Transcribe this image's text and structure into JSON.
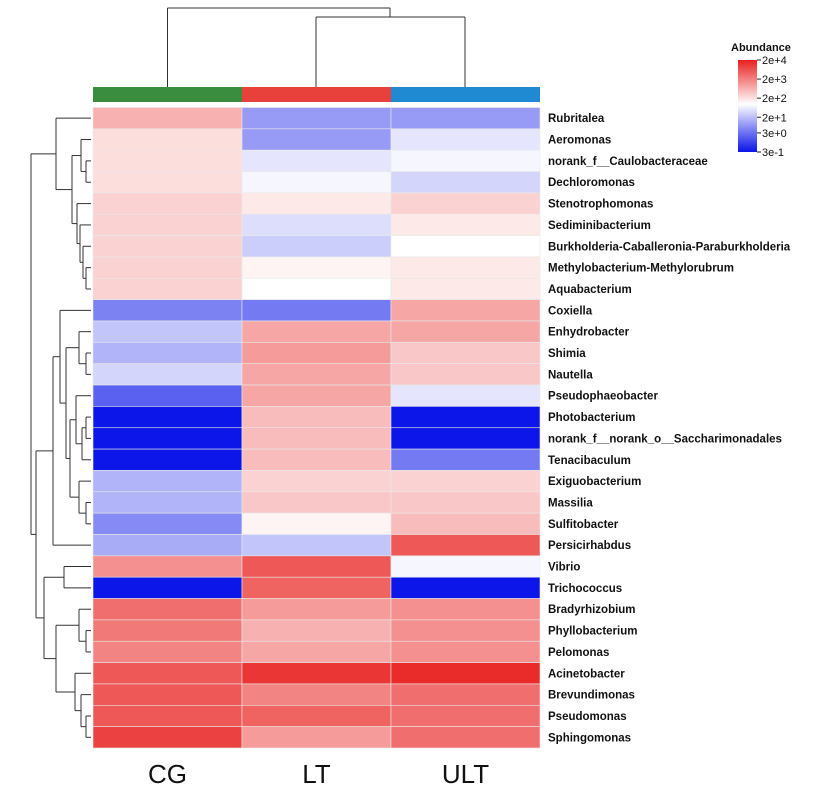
{
  "chart_data": {
    "type": "heatmap",
    "columns": [
      "CG",
      "LT",
      "ULT"
    ],
    "rows": [
      "Rubritalea",
      "Aeromonas",
      "norank_f__Caulobacteraceae",
      "Dechloromonas",
      "Stenotrophomonas",
      "Sediminibacterium",
      "Burkholderia-Caballeronia-Paraburkholderia",
      "Methylobacterium-Methylorubrum",
      "Aquabacterium",
      "Coxiella",
      "Enhydrobacter",
      "Shimia",
      "Nautella",
      "Pseudophaeobacter",
      "Photobacterium",
      "norank_f__norank_o__Saccharimonadales",
      "Tenacibaculum",
      "Exiguobacterium",
      "Massilia",
      "Sulfitobacter",
      "Persicirhabdus",
      "Vibrio",
      "Trichococcus",
      "Bradyrhizobium",
      "Phyllobacterium",
      "Pelomonas",
      "Acinetobacter",
      "Brevundimonas",
      "Pseudomonas",
      "Sphingomonas"
    ],
    "log10_values": [
      [
        3.0,
        1.1,
        1.1
      ],
      [
        2.6,
        1.1,
        2.0
      ],
      [
        2.6,
        2.0,
        2.2
      ],
      [
        2.6,
        2.2,
        1.8
      ],
      [
        2.7,
        2.5,
        2.7
      ],
      [
        2.7,
        1.9,
        2.5
      ],
      [
        2.7,
        1.7,
        2.3
      ],
      [
        2.7,
        2.4,
        2.5
      ],
      [
        2.7,
        2.3,
        2.5
      ],
      [
        0.8,
        0.7,
        3.1
      ],
      [
        1.6,
        3.1,
        3.1
      ],
      [
        1.4,
        3.2,
        2.8
      ],
      [
        1.8,
        3.1,
        2.8
      ],
      [
        0.4,
        3.1,
        2.0
      ],
      [
        -0.5,
        2.9,
        -0.5
      ],
      [
        -0.5,
        2.9,
        -0.5
      ],
      [
        -0.5,
        2.9,
        0.7
      ],
      [
        1.4,
        2.7,
        2.7
      ],
      [
        1.4,
        2.8,
        2.8
      ],
      [
        0.9,
        2.4,
        2.9
      ],
      [
        1.3,
        1.6,
        3.8
      ],
      [
        3.3,
        3.8,
        2.2
      ],
      [
        -0.5,
        3.7,
        -0.5
      ],
      [
        3.6,
        3.2,
        3.3
      ],
      [
        3.5,
        3.0,
        3.3
      ],
      [
        3.4,
        3.1,
        3.3
      ],
      [
        3.8,
        4.1,
        4.2
      ],
      [
        3.8,
        3.4,
        3.6
      ],
      [
        3.8,
        3.7,
        3.6
      ],
      [
        4.0,
        3.2,
        3.6
      ]
    ],
    "column_group_colors": [
      "#3a8d3f",
      "#e8413c",
      "#1f8ad2"
    ],
    "legend": {
      "title": "Abundance",
      "ticks": [
        "2e+4",
        "2e+3",
        "2e+2",
        "2e+1",
        "3e+0",
        "3e-1"
      ],
      "tick_log10": [
        4.3,
        3.3,
        2.3,
        1.3,
        0.48,
        -0.52
      ],
      "colors": [
        "#e8201e",
        "#ffffff",
        "#0a14e8"
      ],
      "placement": "top-right"
    }
  }
}
